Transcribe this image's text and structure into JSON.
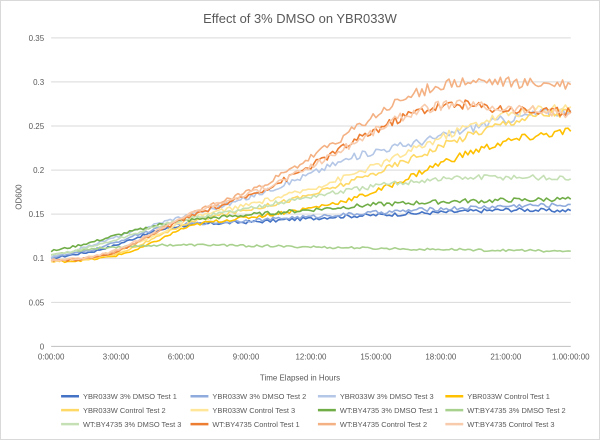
{
  "chart_data": {
    "type": "line",
    "title": "Effect of 3% DMSO on YBR033W",
    "xlabel": "Time Elapsed in Hours",
    "ylabel": "OD600",
    "xlim": [
      0,
      24
    ],
    "ylim": [
      0,
      0.35
    ],
    "x_ticks": [
      "0:00:00",
      "3:00:00",
      "6:00:00",
      "9:00:00",
      "12:00:00",
      "15:00:00",
      "18:00:00",
      "21:00:00",
      "1.00:00:00"
    ],
    "y_ticks": [
      "0",
      "0.05",
      "0.1",
      "0.15",
      "0.2",
      "0.25",
      "0.3",
      "0.35"
    ],
    "grid": true,
    "legend": "bottom",
    "x": [
      0,
      1,
      2,
      3,
      4,
      5,
      6,
      7,
      8,
      9,
      10,
      11,
      12,
      13,
      14,
      15,
      16,
      17,
      18,
      19,
      20,
      21,
      22,
      23,
      24
    ],
    "series": [
      {
        "name": "YBR033W 3% DMSO Test 1",
        "color": "#4472c4",
        "values": [
          0.1,
          0.104,
          0.108,
          0.115,
          0.124,
          0.132,
          0.137,
          0.139,
          0.14,
          0.141,
          0.142,
          0.144,
          0.145,
          0.147,
          0.148,
          0.149,
          0.15,
          0.151,
          0.152,
          0.153,
          0.154,
          0.155,
          0.155,
          0.154,
          0.154
        ]
      },
      {
        "name": "YBR033W 3% DMSO Test 2",
        "color": "#8faadc",
        "values": [
          0.101,
          0.105,
          0.11,
          0.118,
          0.127,
          0.134,
          0.138,
          0.14,
          0.141,
          0.143,
          0.144,
          0.146,
          0.147,
          0.149,
          0.15,
          0.152,
          0.153,
          0.155,
          0.156,
          0.157,
          0.158,
          0.159,
          0.16,
          0.16,
          0.161
        ]
      },
      {
        "name": "YBR033W 3% DMSO Test 3",
        "color": "#b4c7e7",
        "values": [
          0.101,
          0.108,
          0.116,
          0.124,
          0.132,
          0.14,
          0.147,
          0.153,
          0.16,
          0.168,
          0.177,
          0.186,
          0.196,
          0.206,
          0.215,
          0.222,
          0.227,
          0.232,
          0.238,
          0.245,
          0.252,
          0.258,
          0.262,
          0.266,
          0.268
        ]
      },
      {
        "name": "YBR033W Control Test 1",
        "color": "#ffc000",
        "values": [
          0.096,
          0.097,
          0.099,
          0.103,
          0.11,
          0.121,
          0.133,
          0.14,
          0.143,
          0.146,
          0.149,
          0.153,
          0.157,
          0.162,
          0.168,
          0.176,
          0.186,
          0.197,
          0.208,
          0.217,
          0.225,
          0.232,
          0.237,
          0.241,
          0.244
        ]
      },
      {
        "name": "YBR033W Control Test 2",
        "color": "#ffd966",
        "values": [
          0.097,
          0.098,
          0.1,
          0.105,
          0.114,
          0.125,
          0.137,
          0.145,
          0.15,
          0.155,
          0.16,
          0.166,
          0.172,
          0.18,
          0.188,
          0.197,
          0.207,
          0.217,
          0.227,
          0.237,
          0.246,
          0.254,
          0.26,
          0.264,
          0.266
        ]
      },
      {
        "name": "YBR033W Control Test 3",
        "color": "#ffe699",
        "values": [
          0.097,
          0.099,
          0.102,
          0.108,
          0.117,
          0.128,
          0.14,
          0.149,
          0.155,
          0.16,
          0.166,
          0.172,
          0.179,
          0.187,
          0.196,
          0.205,
          0.215,
          0.226,
          0.237,
          0.247,
          0.256,
          0.263,
          0.268,
          0.271,
          0.272
        ]
      },
      {
        "name": "WT:BY4735 3% DMSO Test 1",
        "color": "#70ad47",
        "values": [
          0.108,
          0.113,
          0.119,
          0.126,
          0.132,
          0.138,
          0.142,
          0.145,
          0.147,
          0.149,
          0.151,
          0.153,
          0.155,
          0.157,
          0.159,
          0.161,
          0.162,
          0.163,
          0.164,
          0.165,
          0.165,
          0.166,
          0.166,
          0.167,
          0.167
        ]
      },
      {
        "name": "WT:BY4735 3% DMSO Test 2",
        "color": "#a9d18e",
        "values": [
          0.104,
          0.108,
          0.111,
          0.113,
          0.114,
          0.115,
          0.115,
          0.115,
          0.115,
          0.114,
          0.114,
          0.113,
          0.113,
          0.112,
          0.112,
          0.111,
          0.111,
          0.11,
          0.11,
          0.11,
          0.109,
          0.109,
          0.109,
          0.108,
          0.108
        ]
      },
      {
        "name": "WT:BY4735 3% DMSO Test 3",
        "color": "#c5e0b4",
        "values": [
          0.103,
          0.108,
          0.114,
          0.121,
          0.129,
          0.137,
          0.143,
          0.148,
          0.152,
          0.156,
          0.161,
          0.165,
          0.17,
          0.174,
          0.178,
          0.182,
          0.185,
          0.188,
          0.19,
          0.191,
          0.192,
          0.192,
          0.192,
          0.191,
          0.19
        ]
      },
      {
        "name": "WT:BY4735 Control Test 1",
        "color": "#ed7d31",
        "values": [
          0.097,
          0.098,
          0.101,
          0.107,
          0.118,
          0.131,
          0.143,
          0.153,
          0.161,
          0.17,
          0.18,
          0.192,
          0.205,
          0.219,
          0.233,
          0.246,
          0.258,
          0.268,
          0.273,
          0.274,
          0.272,
          0.27,
          0.268,
          0.266,
          0.265
        ]
      },
      {
        "name": "WT:BY4735 Control Test 2",
        "color": "#f4b183",
        "values": [
          0.098,
          0.099,
          0.102,
          0.108,
          0.119,
          0.132,
          0.145,
          0.156,
          0.165,
          0.175,
          0.186,
          0.199,
          0.214,
          0.23,
          0.246,
          0.262,
          0.277,
          0.289,
          0.296,
          0.299,
          0.3,
          0.299,
          0.298,
          0.297,
          0.297
        ]
      },
      {
        "name": "WT:BY4735 Control Test 3",
        "color": "#f8cbad",
        "values": [
          0.098,
          0.099,
          0.102,
          0.109,
          0.12,
          0.133,
          0.146,
          0.156,
          0.164,
          0.172,
          0.181,
          0.192,
          0.204,
          0.217,
          0.231,
          0.245,
          0.258,
          0.268,
          0.273,
          0.274,
          0.272,
          0.27,
          0.268,
          0.266,
          0.265
        ]
      }
    ]
  }
}
